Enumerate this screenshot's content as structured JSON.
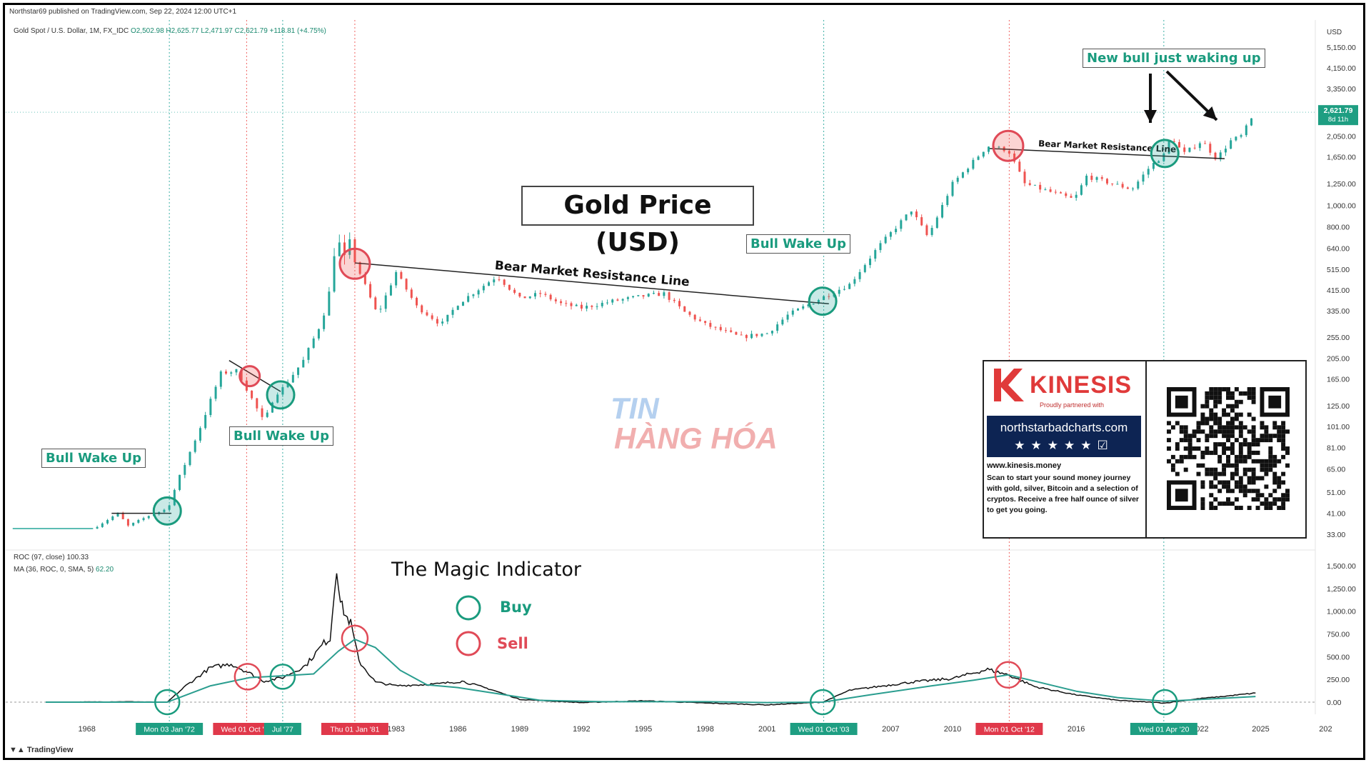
{
  "header": {
    "published": "Northstar69 published on TradingView.com, Sep 22, 2024 12:00 UTC+1",
    "symbol": "Gold Spot / U.S. Dollar, 1M, FX_IDC",
    "ohlc": "O2,502.98  H2,625.77  L2,471.97  C2,621.79  +118.81 (+4.75%)"
  },
  "roc_header": {
    "line1": "ROC (97, close)",
    "line1_value": "100.33",
    "line2": "MA (36, ROC, 0, SMA, 5)",
    "line2_value": "62.20"
  },
  "footer": {
    "brand": "TradingView"
  },
  "annotations": {
    "title": "Gold Price (USD)",
    "magic_indicator": "The Magic Indicator",
    "buy": "Buy",
    "sell": "Sell",
    "bull_wake_up": "Bull Wake Up",
    "new_bull": "New bull just waking up",
    "bear_line": "Bear Market Resistance Line",
    "bear_line_small": "Bear Market Resistance Line"
  },
  "promo": {
    "brand": "KINESIS",
    "partnered": "Proudly partnered with",
    "site": "northstarbadcharts.com",
    "stars": "★★★★★☑",
    "web": "www.kinesis.money",
    "desc": "Scan to start your sound money journey with gold, silver, Bitcoin and a selection of cryptos. Receive a free half ounce of silver to get you going."
  },
  "watermark": {
    "line1": "TIN",
    "line2": "HÀNG HÓA"
  },
  "colors": {
    "buy": "#1a9b7e",
    "sell": "#e04a57",
    "up": "#26a69a",
    "down": "#ef5350",
    "roc": "#111111",
    "ma": "#2a9d8f"
  },
  "chart_data": [
    {
      "type": "candlestick",
      "title": "Gold Price (USD)",
      "scale": "log",
      "currency": "USD",
      "current_price": "2,621.79",
      "countdown": "8d 11h",
      "y_ticks": [
        "5,150.00",
        "4,150.00",
        "3,350.00",
        "2,050.00",
        "1,650.00",
        "1,250.00",
        "1,000.00",
        "800.00",
        "640.00",
        "515.00",
        "415.00",
        "335.00",
        "255.00",
        "205.00",
        "165.00",
        "125.00",
        "101.00",
        "81.00",
        "65.00",
        "51.00",
        "41.00",
        "33.00"
      ],
      "x_ticks": [
        "1968",
        "1983",
        "1986",
        "1989",
        "1992",
        "1995",
        "1998",
        "2001",
        "2007",
        "2010",
        "2016",
        "2022",
        "2025",
        "202"
      ],
      "price_path": [
        [
          1966,
          35
        ],
        [
          1968.3,
          35
        ],
        [
          1969.5,
          41
        ],
        [
          1970,
          36
        ],
        [
          1971,
          40
        ],
        [
          1971.9,
          43
        ],
        [
          1972.5,
          60
        ],
        [
          1973.5,
          100
        ],
        [
          1974.5,
          175
        ],
        [
          1975.3,
          180
        ],
        [
          1975.9,
          140
        ],
        [
          1976.6,
          105
        ],
        [
          1977.1,
          140
        ],
        [
          1977.5,
          150
        ],
        [
          1978.5,
          200
        ],
        [
          1979.4,
          300
        ],
        [
          1979.9,
          450
        ],
        [
          1980.1,
          850
        ],
        [
          1980.4,
          520
        ],
        [
          1980.7,
          690
        ],
        [
          1981,
          560
        ],
        [
          1982.1,
          320
        ],
        [
          1983,
          500
        ],
        [
          1984,
          350
        ],
        [
          1985.2,
          290
        ],
        [
          1986,
          360
        ],
        [
          1987.9,
          480
        ],
        [
          1989,
          380
        ],
        [
          1990,
          400
        ],
        [
          1991,
          360
        ],
        [
          1992,
          345
        ],
        [
          1993.5,
          370
        ],
        [
          1995,
          390
        ],
        [
          1996,
          400
        ],
        [
          1997,
          330
        ],
        [
          1998,
          290
        ],
        [
          1999.7,
          255
        ],
        [
          2001,
          265
        ],
        [
          2002,
          320
        ],
        [
          2003.7,
          385
        ],
        [
          2005,
          440
        ],
        [
          2006.4,
          650
        ],
        [
          2008,
          950
        ],
        [
          2008.8,
          720
        ],
        [
          2010,
          1250
        ],
        [
          2011.7,
          1850
        ],
        [
          2012.7,
          1770
        ],
        [
          2013.5,
          1250
        ],
        [
          2015.9,
          1060
        ],
        [
          2016.5,
          1350
        ],
        [
          2018.7,
          1180
        ],
        [
          2019.6,
          1500
        ],
        [
          2020.3,
          1700
        ],
        [
          2020.6,
          2050
        ],
        [
          2021.2,
          1700
        ],
        [
          2022.1,
          1950
        ],
        [
          2022.8,
          1620
        ],
        [
          2023.5,
          1950
        ],
        [
          2024,
          2050
        ],
        [
          2024.7,
          2622
        ]
      ],
      "series": [
        {
          "name": "Bear Market Resistance Line",
          "points": [
            [
              1981,
              550
            ],
            [
              2004,
              360
            ]
          ]
        },
        {
          "name": "Bear Market Resistance Line",
          "points": [
            [
              2011.8,
              1800
            ],
            [
              2023.2,
              1620
            ]
          ]
        }
      ],
      "buy_signals": [
        [
          1971.9,
          42
        ],
        [
          1977.4,
          140
        ],
        [
          2003.7,
          370
        ],
        [
          2020.3,
          1710
        ]
      ],
      "sell_signals": [
        [
          1975.9,
          170
        ],
        [
          1981.0,
          545
        ],
        [
          2012.7,
          1850
        ]
      ],
      "event_labels": [
        {
          "x": 1972.0,
          "label": "Mon 03 Jan '72",
          "kind": "buy"
        },
        {
          "x": 1975.75,
          "label": "Wed 01 Oct '75",
          "kind": "sell"
        },
        {
          "x": 1977.5,
          "label": "Jul '77",
          "kind": "buy"
        },
        {
          "x": 1981.0,
          "label": "Thu 01 Jan '81",
          "kind": "sell"
        },
        {
          "x": 2003.75,
          "label": "Wed 01 Oct '03",
          "kind": "buy"
        },
        {
          "x": 2012.75,
          "label": "Mon 01 Oct '12",
          "kind": "sell"
        },
        {
          "x": 2020.25,
          "label": "Wed 01 Apr '20",
          "kind": "buy"
        }
      ]
    },
    {
      "type": "line",
      "title": "The Magic Indicator",
      "y_ticks": [
        "1,500.00",
        "1,250.00",
        "1,000.00",
        "750.00",
        "500.00",
        "250.00",
        "0.00"
      ],
      "series": [
        {
          "name": "ROC (97, close)",
          "points": [
            [
              1966,
              0
            ],
            [
              1970,
              5
            ],
            [
              1971.9,
              0
            ],
            [
              1972.8,
              180
            ],
            [
              1974,
              380
            ],
            [
              1975,
              420
            ],
            [
              1975.8,
              330
            ],
            [
              1976.6,
              230
            ],
            [
              1977.5,
              270
            ],
            [
              1978.6,
              400
            ],
            [
              1979.5,
              650
            ],
            [
              1979.8,
              700
            ],
            [
              1980,
              1200
            ],
            [
              1980.12,
              1500
            ],
            [
              1980.3,
              1100
            ],
            [
              1980.55,
              950
            ],
            [
              1980.8,
              870
            ],
            [
              1981.2,
              450
            ],
            [
              1982,
              220
            ],
            [
              1983,
              180
            ],
            [
              1985,
              200
            ],
            [
              1986.2,
              230
            ],
            [
              1987.6,
              140
            ],
            [
              1989,
              30
            ],
            [
              1992,
              -5
            ],
            [
              1995,
              15
            ],
            [
              1998,
              -10
            ],
            [
              2001,
              -30
            ],
            [
              2003.7,
              0
            ],
            [
              2005,
              130
            ],
            [
              2008,
              220
            ],
            [
              2010,
              260
            ],
            [
              2011.7,
              360
            ],
            [
              2012.7,
              300
            ],
            [
              2014,
              170
            ],
            [
              2016,
              80
            ],
            [
              2018,
              20
            ],
            [
              2020.3,
              -10
            ],
            [
              2022,
              40
            ],
            [
              2023,
              60
            ],
            [
              2024.7,
              100
            ]
          ]
        },
        {
          "name": "MA (36, ROC, 0, SMA, 5)",
          "points": [
            [
              1966,
              0
            ],
            [
              1971.9,
              0
            ],
            [
              1974,
              180
            ],
            [
              1975.9,
              270
            ],
            [
              1977.5,
              290
            ],
            [
              1979,
              310
            ],
            [
              1980.2,
              560
            ],
            [
              1981,
              690
            ],
            [
              1982,
              600
            ],
            [
              1983.2,
              350
            ],
            [
              1984.5,
              190
            ],
            [
              1986,
              160
            ],
            [
              1988,
              90
            ],
            [
              1990,
              20
            ],
            [
              1993,
              5
            ],
            [
              1998,
              5
            ],
            [
              2001,
              -5
            ],
            [
              2003.7,
              0
            ],
            [
              2006,
              80
            ],
            [
              2009,
              180
            ],
            [
              2011,
              240
            ],
            [
              2012.7,
              300
            ],
            [
              2014,
              230
            ],
            [
              2016,
              120
            ],
            [
              2018,
              50
            ],
            [
              2020.3,
              10
            ],
            [
              2022,
              30
            ],
            [
              2024.7,
              62
            ]
          ]
        }
      ],
      "buy_signals": [
        [
          1971.9,
          0
        ],
        [
          1977.5,
          280
        ],
        [
          2003.7,
          0
        ],
        [
          2020.3,
          0
        ]
      ],
      "sell_signals": [
        [
          1975.8,
          280
        ],
        [
          1981.0,
          700
        ],
        [
          2012.7,
          300
        ]
      ]
    }
  ]
}
